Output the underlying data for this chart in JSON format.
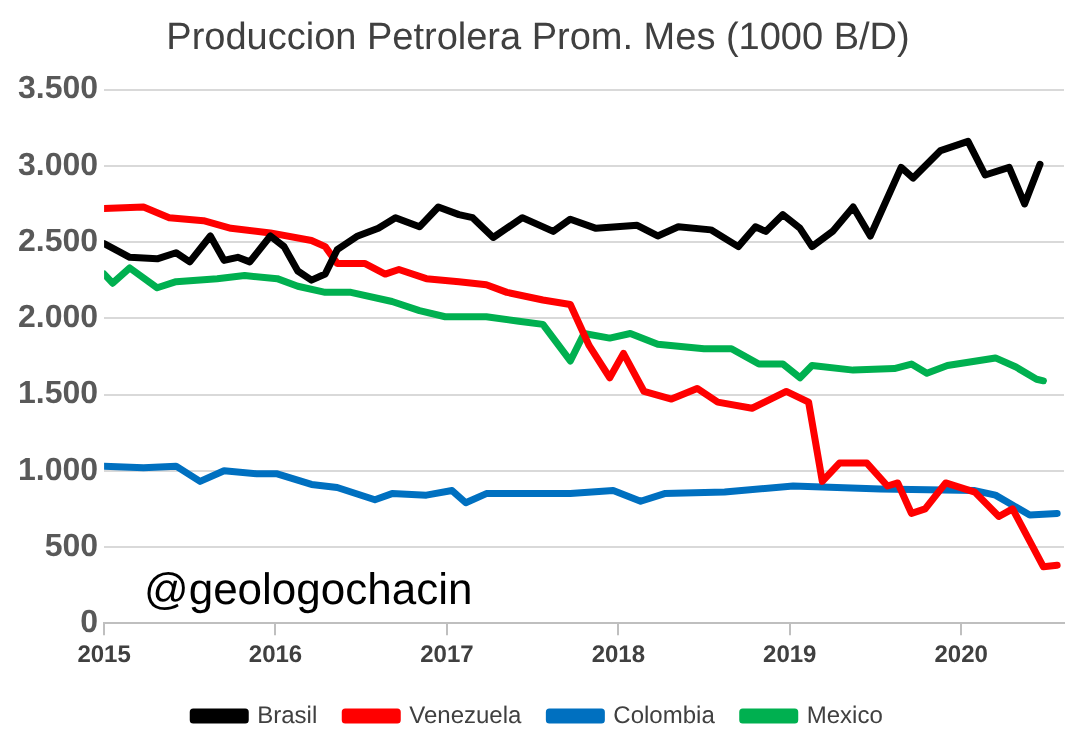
{
  "chart_data": {
    "type": "line",
    "title": "Produccion Petrolera Prom. Mes (1000 B/D)",
    "xlim": [
      2015,
      2020.6
    ],
    "xticks": [
      2015,
      2016,
      2017,
      2018,
      2019,
      2020
    ],
    "ylim": [
      0,
      3500
    ],
    "yticks": [
      {
        "value": 0,
        "label": "0"
      },
      {
        "value": 500,
        "label": "500"
      },
      {
        "value": 1000,
        "label": "1.000"
      },
      {
        "value": 1500,
        "label": "1.500"
      },
      {
        "value": 2000,
        "label": "2.000"
      },
      {
        "value": 2500,
        "label": "2.500"
      },
      {
        "value": 3000,
        "label": "3.000"
      },
      {
        "value": 3500,
        "label": "3.500"
      }
    ],
    "grid": "y",
    "legend": "bottom",
    "marker": "none",
    "line_style": "solid",
    "annotations": [
      "@geologochacin"
    ],
    "series": [
      {
        "name": "Brasil",
        "color": "#000000",
        "x": [
          2015,
          2015.15,
          2015.31,
          2015.42,
          2015.5,
          2015.62,
          2015.7,
          2015.78,
          2015.85,
          2015.97,
          2016.05,
          2016.13,
          2016.21,
          2016.29,
          2016.36,
          2016.48,
          2016.6,
          2016.7,
          2016.84,
          2016.95,
          2017.07,
          2017.15,
          2017.27,
          2017.44,
          2017.62,
          2017.72,
          2017.87,
          2018.11,
          2018.23,
          2018.35,
          2018.54,
          2018.7,
          2018.8,
          2018.86,
          2018.96,
          2019.06,
          2019.13,
          2019.25,
          2019.37,
          2019.47,
          2019.65,
          2019.72,
          2019.88,
          2020.04,
          2020.14,
          2020.28,
          2020.37,
          2020.46
        ],
        "values": [
          2490,
          2400,
          2390,
          2430,
          2370,
          2540,
          2380,
          2400,
          2370,
          2540,
          2470,
          2310,
          2250,
          2290,
          2450,
          2540,
          2590,
          2660,
          2600,
          2730,
          2680,
          2660,
          2530,
          2660,
          2570,
          2650,
          2590,
          2610,
          2540,
          2600,
          2580,
          2470,
          2600,
          2570,
          2680,
          2590,
          2470,
          2570,
          2730,
          2540,
          2990,
          2920,
          3100,
          3160,
          2940,
          2990,
          2750,
          3010
        ]
      },
      {
        "name": "Venezuela",
        "color": "#ff0000",
        "x": [
          2015,
          2015.23,
          2015.38,
          2015.58,
          2015.74,
          2015.97,
          2016.21,
          2016.29,
          2016.36,
          2016.52,
          2016.64,
          2016.72,
          2016.88,
          2017.07,
          2017.23,
          2017.35,
          2017.56,
          2017.72,
          2017.83,
          2017.95,
          2018.03,
          2018.15,
          2018.31,
          2018.46,
          2018.58,
          2018.78,
          2018.98,
          2019.11,
          2019.19,
          2019.29,
          2019.45,
          2019.57,
          2019.63,
          2019.71,
          2019.79,
          2019.91,
          2020.08,
          2020.22,
          2020.3,
          2020.48,
          2020.56
        ],
        "values": [
          2720,
          2730,
          2660,
          2640,
          2590,
          2560,
          2510,
          2470,
          2360,
          2360,
          2290,
          2320,
          2260,
          2240,
          2220,
          2170,
          2120,
          2090,
          1820,
          1610,
          1770,
          1520,
          1470,
          1540,
          1450,
          1410,
          1520,
          1450,
          930,
          1050,
          1050,
          900,
          920,
          720,
          750,
          920,
          860,
          700,
          750,
          370,
          380
        ]
      },
      {
        "name": "Colombia",
        "color": "#0070c0",
        "x": [
          2015,
          2015.23,
          2015.42,
          2015.56,
          2015.7,
          2015.89,
          2016.01,
          2016.21,
          2016.36,
          2016.58,
          2016.68,
          2016.88,
          2017.03,
          2017.11,
          2017.23,
          2017.4,
          2017.72,
          2017.97,
          2018.13,
          2018.27,
          2018.62,
          2019.02,
          2019.53,
          2020.08,
          2020.2,
          2020.4,
          2020.56
        ],
        "values": [
          1030,
          1020,
          1030,
          930,
          1000,
          980,
          980,
          910,
          890,
          810,
          850,
          840,
          870,
          790,
          850,
          850,
          850,
          870,
          800,
          850,
          860,
          900,
          880,
          870,
          840,
          710,
          720
        ]
      },
      {
        "name": "Mexico",
        "color": "#00b050",
        "x": [
          2015,
          2015.05,
          2015.15,
          2015.31,
          2015.42,
          2015.66,
          2015.82,
          2016.01,
          2016.13,
          2016.29,
          2016.44,
          2016.68,
          2016.84,
          2016.99,
          2017.23,
          2017.42,
          2017.56,
          2017.64,
          2017.72,
          2017.8,
          2017.95,
          2018.07,
          2018.23,
          2018.5,
          2018.66,
          2018.82,
          2018.96,
          2019.06,
          2019.13,
          2019.37,
          2019.61,
          2019.71,
          2019.8,
          2019.92,
          2020.2,
          2020.32,
          2020.44,
          2020.48
        ],
        "values": [
          2290,
          2230,
          2330,
          2200,
          2240,
          2260,
          2280,
          2260,
          2210,
          2170,
          2170,
          2110,
          2050,
          2010,
          2010,
          1980,
          1960,
          1840,
          1720,
          1900,
          1870,
          1900,
          1830,
          1800,
          1800,
          1700,
          1700,
          1610,
          1690,
          1660,
          1670,
          1700,
          1640,
          1690,
          1740,
          1680,
          1600,
          1590
        ]
      }
    ]
  }
}
